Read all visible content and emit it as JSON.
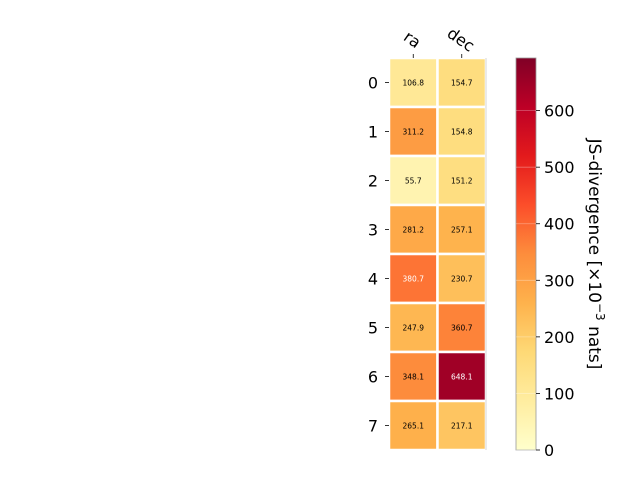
{
  "chart_data": {
    "type": "heatmap",
    "title": "",
    "xlabel": "",
    "ylabel": "",
    "x_categories": [
      "ra",
      "dec"
    ],
    "y_categories": [
      "0",
      "1",
      "2",
      "3",
      "4",
      "5",
      "6",
      "7"
    ],
    "values": [
      [
        106.8,
        154.7
      ],
      [
        311.2,
        154.8
      ],
      [
        55.7,
        151.2
      ],
      [
        281.2,
        257.1
      ],
      [
        380.7,
        230.7
      ],
      [
        247.9,
        360.7
      ],
      [
        348.1,
        648.1
      ],
      [
        265.1,
        217.1
      ]
    ],
    "value_labels": [
      [
        "106.8",
        "154.7"
      ],
      [
        "311.2",
        "154.8"
      ],
      [
        "55.7",
        "151.2"
      ],
      [
        "281.2",
        "257.1"
      ],
      [
        "380.7",
        "230.7"
      ],
      [
        "247.9",
        "360.7"
      ],
      [
        "348.1",
        "648.1"
      ],
      [
        "265.1",
        "217.1"
      ]
    ],
    "colormap": "YlOrRd",
    "colorbar": {
      "label": "JS-divergence [×10",
      "label_exponent": "−3",
      "label_suffix": " nats]",
      "range": [
        0,
        693
      ],
      "ticks": [
        0,
        100,
        200,
        300,
        400,
        500,
        600
      ],
      "tick_labels": [
        "0",
        "100",
        "200",
        "300",
        "400",
        "500",
        "600"
      ]
    },
    "grid": false,
    "x_tick_position": "top"
  }
}
